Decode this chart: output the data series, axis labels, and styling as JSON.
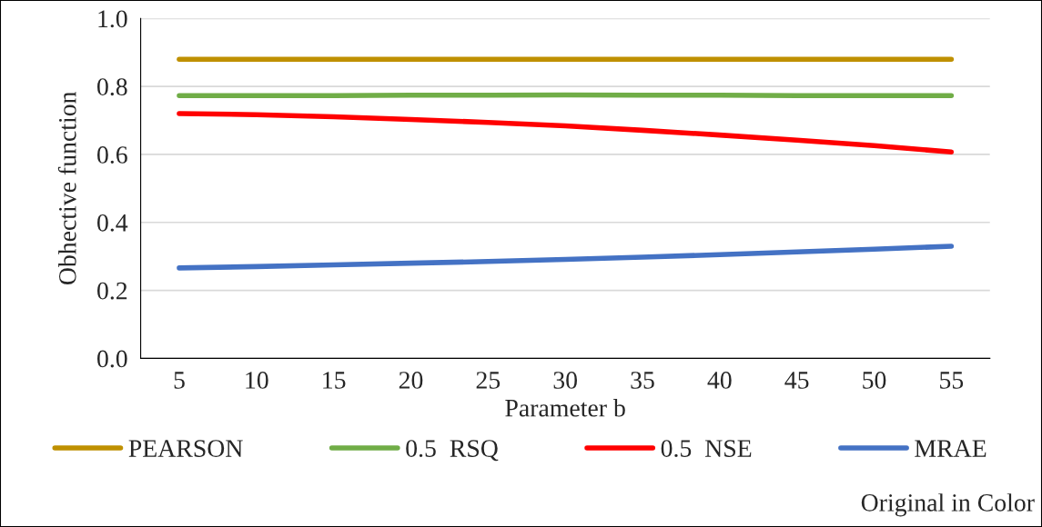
{
  "chart_data": {
    "type": "line",
    "xlabel": "Parameter b",
    "ylabel": "Obhective function",
    "categories": [
      "5",
      "10",
      "15",
      "20",
      "25",
      "30",
      "35",
      "40",
      "45",
      "50",
      "55"
    ],
    "series": [
      {
        "name": "PEARSON",
        "color": "#bf9000",
        "values": [
          0.88,
          0.88,
          0.88,
          0.88,
          0.88,
          0.88,
          0.88,
          0.88,
          0.88,
          0.88,
          0.88
        ]
      },
      {
        "name": "0.5  RSQ",
        "color": "#70ad47",
        "values": [
          0.773,
          0.773,
          0.773,
          0.774,
          0.774,
          0.775,
          0.774,
          0.774,
          0.773,
          0.773,
          0.773
        ]
      },
      {
        "name": "0.5  NSE",
        "color": "#ff0000",
        "values": [
          0.72,
          0.717,
          0.711,
          0.703,
          0.694,
          0.684,
          0.671,
          0.657,
          0.642,
          0.626,
          0.607
        ]
      },
      {
        "name": "MRAE",
        "color": "#4472c4",
        "values": [
          0.266,
          0.27,
          0.275,
          0.28,
          0.285,
          0.291,
          0.298,
          0.305,
          0.313,
          0.321,
          0.33
        ]
      }
    ],
    "ylim": [
      0,
      1
    ],
    "yticks": [
      {
        "value": 0,
        "label": "0.0"
      },
      {
        "value": 0.2,
        "label": "0.2"
      },
      {
        "value": 0.4,
        "label": "0.4"
      },
      {
        "value": 0.6,
        "label": "0.6"
      },
      {
        "value": 0.8,
        "label": "0.8"
      },
      {
        "value": 1,
        "label": "1.0"
      }
    ],
    "grid": "y",
    "legend": "bottom",
    "marker": "none",
    "line_style": "solid",
    "annotations": [
      "Original in Color"
    ]
  }
}
